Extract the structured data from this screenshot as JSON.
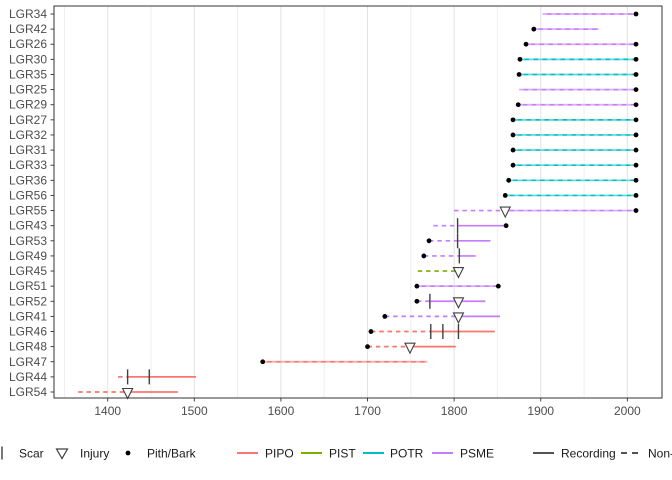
{
  "chart_data": {
    "type": "line",
    "subtype": "fire-history-demography",
    "title": "",
    "xlabel": "",
    "ylabel": "",
    "x_domain": [
      1338,
      2040
    ],
    "x_major_ticks": [
      1400,
      1500,
      1600,
      1700,
      1800,
      1900,
      2000
    ],
    "x_minor_gridlines": [
      1350,
      1450,
      1550,
      1650,
      1750,
      1850,
      1950
    ],
    "grid": true,
    "legend_position": "bottom",
    "species_colors": {
      "PIPO": "#F8766D",
      "PIST": "#7CAE00",
      "POTR": "#00BFC4",
      "PSME": "#C77CFF"
    },
    "mark_color": "#404040",
    "dot_color": "#000000",
    "axis_text_color": "#4d4d4d",
    "legend_text_color": "#1a1a1a",
    "series": [
      {
        "label": "LGR34",
        "species": "PSME",
        "pith": null,
        "bark": 2010,
        "scars": [],
        "injuries": [],
        "segments": [
          {
            "from": 1902,
            "to": 2010,
            "style": "soliddash"
          }
        ]
      },
      {
        "label": "LGR42",
        "species": "PSME",
        "pith": 1892,
        "bark": null,
        "scars": [],
        "injuries": [],
        "segments": [
          {
            "from": 1892,
            "to": 1967,
            "style": "soliddash"
          }
        ]
      },
      {
        "label": "LGR26",
        "species": "PSME",
        "pith": 1883,
        "bark": 2010,
        "scars": [],
        "injuries": [],
        "segments": [
          {
            "from": 1883,
            "to": 2010,
            "style": "soliddash"
          }
        ]
      },
      {
        "label": "LGR30",
        "species": "POTR",
        "pith": 1876,
        "bark": 2010,
        "scars": [],
        "injuries": [],
        "segments": [
          {
            "from": 1876,
            "to": 2010,
            "style": "soliddash"
          }
        ]
      },
      {
        "label": "LGR35",
        "species": "POTR",
        "pith": 1875,
        "bark": 2010,
        "scars": [],
        "injuries": [],
        "segments": [
          {
            "from": 1875,
            "to": 2010,
            "style": "soliddash"
          }
        ]
      },
      {
        "label": "LGR25",
        "species": "PSME",
        "pith": null,
        "bark": 2010,
        "scars": [],
        "injuries": [],
        "segments": [
          {
            "from": 1875,
            "to": 2010,
            "style": "soliddash"
          }
        ]
      },
      {
        "label": "LGR29",
        "species": "PSME",
        "pith": 1874,
        "bark": 2010,
        "scars": [],
        "injuries": [],
        "segments": [
          {
            "from": 1874,
            "to": 2010,
            "style": "soliddash"
          }
        ]
      },
      {
        "label": "LGR27",
        "species": "POTR",
        "pith": 1868,
        "bark": 2010,
        "scars": [],
        "injuries": [],
        "segments": [
          {
            "from": 1868,
            "to": 2010,
            "style": "soliddash"
          }
        ]
      },
      {
        "label": "LGR32",
        "species": "POTR",
        "pith": 1868,
        "bark": 2010,
        "scars": [],
        "injuries": [],
        "segments": [
          {
            "from": 1868,
            "to": 2010,
            "style": "soliddash"
          }
        ]
      },
      {
        "label": "LGR31",
        "species": "POTR",
        "pith": 1868,
        "bark": 2010,
        "scars": [],
        "injuries": [],
        "segments": [
          {
            "from": 1868,
            "to": 2010,
            "style": "soliddash"
          }
        ]
      },
      {
        "label": "LGR33",
        "species": "POTR",
        "pith": 1868,
        "bark": 2010,
        "scars": [],
        "injuries": [],
        "segments": [
          {
            "from": 1868,
            "to": 2010,
            "style": "soliddash"
          }
        ]
      },
      {
        "label": "LGR36",
        "species": "POTR",
        "pith": 1863,
        "bark": 2010,
        "scars": [],
        "injuries": [],
        "segments": [
          {
            "from": 1863,
            "to": 2010,
            "style": "soliddash"
          }
        ]
      },
      {
        "label": "LGR56",
        "species": "POTR",
        "pith": 1859,
        "bark": 2010,
        "scars": [],
        "injuries": [],
        "segments": [
          {
            "from": 1859,
            "to": 2010,
            "style": "soliddash"
          }
        ]
      },
      {
        "label": "LGR55",
        "species": "PSME",
        "pith": null,
        "bark": 2010,
        "scars": [],
        "injuries": [
          1859
        ],
        "segments": [
          {
            "from": 1800,
            "to": 1859,
            "style": "dashed"
          },
          {
            "from": 1859,
            "to": 2010,
            "style": "soliddash"
          }
        ]
      },
      {
        "label": "LGR43",
        "species": "PSME",
        "pith": null,
        "bark": 1860,
        "scars": [
          1804
        ],
        "injuries": [],
        "segments": [
          {
            "from": 1776,
            "to": 1804,
            "style": "dashed"
          },
          {
            "from": 1804,
            "to": 1860,
            "style": "solid"
          }
        ]
      },
      {
        "label": "LGR53",
        "species": "PSME",
        "pith": 1771,
        "bark": null,
        "scars": [
          1804
        ],
        "injuries": [],
        "segments": [
          {
            "from": 1771,
            "to": 1804,
            "style": "dashed"
          },
          {
            "from": 1804,
            "to": 1842,
            "style": "solid"
          }
        ]
      },
      {
        "label": "LGR49",
        "species": "PSME",
        "pith": 1765,
        "bark": null,
        "scars": [
          1806
        ],
        "injuries": [],
        "segments": [
          {
            "from": 1765,
            "to": 1806,
            "style": "dashed"
          },
          {
            "from": 1806,
            "to": 1825,
            "style": "solid"
          }
        ]
      },
      {
        "label": "LGR45",
        "species": "PIST",
        "pith": null,
        "bark": null,
        "scars": [],
        "injuries": [
          1805
        ],
        "segments": [
          {
            "from": 1758,
            "to": 1805,
            "style": "dashed"
          }
        ]
      },
      {
        "label": "LGR51",
        "species": "PSME",
        "pith": 1757,
        "bark": 1851,
        "scars": [],
        "injuries": [],
        "segments": [
          {
            "from": 1757,
            "to": 1851,
            "style": "soliddash"
          }
        ]
      },
      {
        "label": "LGR52",
        "species": "PSME",
        "pith": 1757,
        "bark": null,
        "scars": [
          1772
        ],
        "injuries": [
          1805
        ],
        "segments": [
          {
            "from": 1757,
            "to": 1772,
            "style": "dashed"
          },
          {
            "from": 1772,
            "to": 1836,
            "style": "solid"
          }
        ]
      },
      {
        "label": "LGR41",
        "species": "PSME",
        "pith": 1720,
        "bark": null,
        "scars": [],
        "injuries": [
          1805
        ],
        "segments": [
          {
            "from": 1720,
            "to": 1805,
            "style": "dashed"
          },
          {
            "from": 1805,
            "to": 1853,
            "style": "solid"
          }
        ]
      },
      {
        "label": "LGR46",
        "species": "PIPO",
        "pith": 1704,
        "bark": null,
        "scars": [
          1773,
          1787,
          1805
        ],
        "injuries": [],
        "segments": [
          {
            "from": 1704,
            "to": 1773,
            "style": "dashed"
          },
          {
            "from": 1773,
            "to": 1847,
            "style": "solid"
          }
        ]
      },
      {
        "label": "LGR48",
        "species": "PIPO",
        "pith": 1700,
        "bark": null,
        "scars": [],
        "injuries": [
          1749
        ],
        "segments": [
          {
            "from": 1700,
            "to": 1749,
            "style": "dashed"
          },
          {
            "from": 1749,
            "to": 1802,
            "style": "solid"
          }
        ]
      },
      {
        "label": "LGR47",
        "species": "PIPO",
        "pith": 1579,
        "bark": null,
        "scars": [],
        "injuries": [],
        "segments": [
          {
            "from": 1579,
            "to": 1769,
            "style": "soliddash"
          }
        ]
      },
      {
        "label": "LGR44",
        "species": "PIPO",
        "pith": null,
        "bark": null,
        "scars": [
          1423,
          1448
        ],
        "injuries": [],
        "segments": [
          {
            "from": 1412,
            "to": 1423,
            "style": "dashed"
          },
          {
            "from": 1423,
            "to": 1502,
            "style": "solid"
          }
        ]
      },
      {
        "label": "LGR54",
        "species": "PIPO",
        "pith": null,
        "bark": null,
        "scars": [],
        "injuries": [
          1423
        ],
        "segments": [
          {
            "from": 1366,
            "to": 1423,
            "style": "dashed"
          },
          {
            "from": 1423,
            "to": 1481,
            "style": "solid"
          }
        ]
      }
    ],
    "legend": {
      "symbols": [
        {
          "name": "scar",
          "label": "Scar"
        },
        {
          "name": "injury",
          "label": "Injury"
        },
        {
          "name": "pith-bark",
          "label": "Pith/Bark"
        }
      ],
      "species": [
        {
          "label": "PIPO",
          "color": "#F8766D"
        },
        {
          "label": "PIST",
          "color": "#7CAE00"
        },
        {
          "label": "POTR",
          "color": "#00BFC4"
        },
        {
          "label": "PSME",
          "color": "#C77CFF"
        }
      ],
      "linetypes": [
        {
          "label": "Recording",
          "style": "solid"
        },
        {
          "label": "Non-recording",
          "style": "dashed"
        }
      ]
    }
  }
}
